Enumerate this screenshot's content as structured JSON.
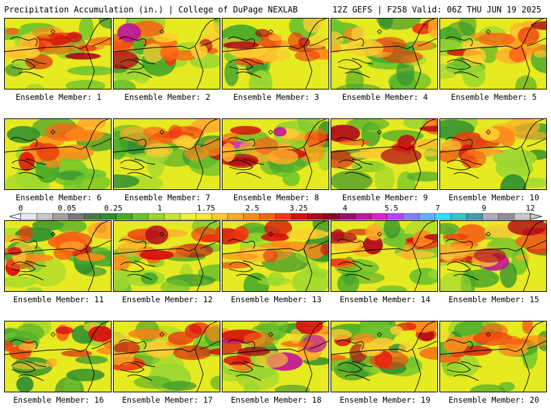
{
  "header": {
    "left": "Precipitation Accumulation (in.) | College of DuPage NEXLAB",
    "right": "12Z GEFS | F258 Valid: 06Z THU JUN 19 2025"
  },
  "members": [
    {
      "label": "Ensemble Member: 1",
      "seed": 11,
      "wet": 0.55
    },
    {
      "label": "Ensemble Member: 2",
      "seed": 23,
      "wet": 0.75
    },
    {
      "label": "Ensemble Member: 3",
      "seed": 37,
      "wet": 0.7
    },
    {
      "label": "Ensemble Member: 4",
      "seed": 41,
      "wet": 0.35
    },
    {
      "label": "Ensemble Member: 5",
      "seed": 53,
      "wet": 0.6
    },
    {
      "label": "Ensemble Member: 6",
      "seed": 61,
      "wet": 0.45
    },
    {
      "label": "Ensemble Member: 7",
      "seed": 73,
      "wet": 0.6
    },
    {
      "label": "Ensemble Member: 8",
      "seed": 89,
      "wet": 0.9
    },
    {
      "label": "Ensemble Member: 9",
      "seed": 97,
      "wet": 0.6
    },
    {
      "label": "Ensemble Member: 10",
      "seed": 101,
      "wet": 0.5
    },
    {
      "label": "Ensemble Member: 11",
      "seed": 113,
      "wet": 0.75
    },
    {
      "label": "Ensemble Member: 12",
      "seed": 127,
      "wet": 0.6
    },
    {
      "label": "Ensemble Member: 13",
      "seed": 131,
      "wet": 0.6
    },
    {
      "label": "Ensemble Member: 14",
      "seed": 149,
      "wet": 0.65
    },
    {
      "label": "Ensemble Member: 15",
      "seed": 157,
      "wet": 0.7
    },
    {
      "label": "Ensemble Member: 16",
      "seed": 163,
      "wet": 0.5
    },
    {
      "label": "Ensemble Member: 17",
      "seed": 179,
      "wet": 0.5
    },
    {
      "label": "Ensemble Member: 18",
      "seed": 181,
      "wet": 0.85
    },
    {
      "label": "Ensemble Member: 19",
      "seed": 191,
      "wet": 0.55
    },
    {
      "label": "Ensemble Member: 20",
      "seed": 197,
      "wet": 0.4
    }
  ],
  "scale": {
    "labels": [
      "0",
      "0.05",
      "0.25",
      "1",
      "1.75",
      "2.5",
      "3.25",
      "4",
      "5.5",
      "7",
      "9",
      "12"
    ],
    "colors": [
      "#e8e8e8",
      "#c8c8c8",
      "#a0a0a0",
      "#787878",
      "#4a7a4a",
      "#2f8f2f",
      "#47a82a",
      "#6cc22c",
      "#9ad630",
      "#c8e632",
      "#eef23a",
      "#ffe53a",
      "#ffcc33",
      "#ffaa2a",
      "#ff8a1a",
      "#f86414",
      "#ee3a10",
      "#d8100e",
      "#b00a18",
      "#8a0a1e",
      "#a01060",
      "#c01898",
      "#e020c8",
      "#c040ff",
      "#8080ff",
      "#60b0ff",
      "#30e0ff",
      "#30c8c8",
      "#40a0a0",
      "#b0b0b0",
      "#909090",
      "#c8c8c8"
    ]
  }
}
